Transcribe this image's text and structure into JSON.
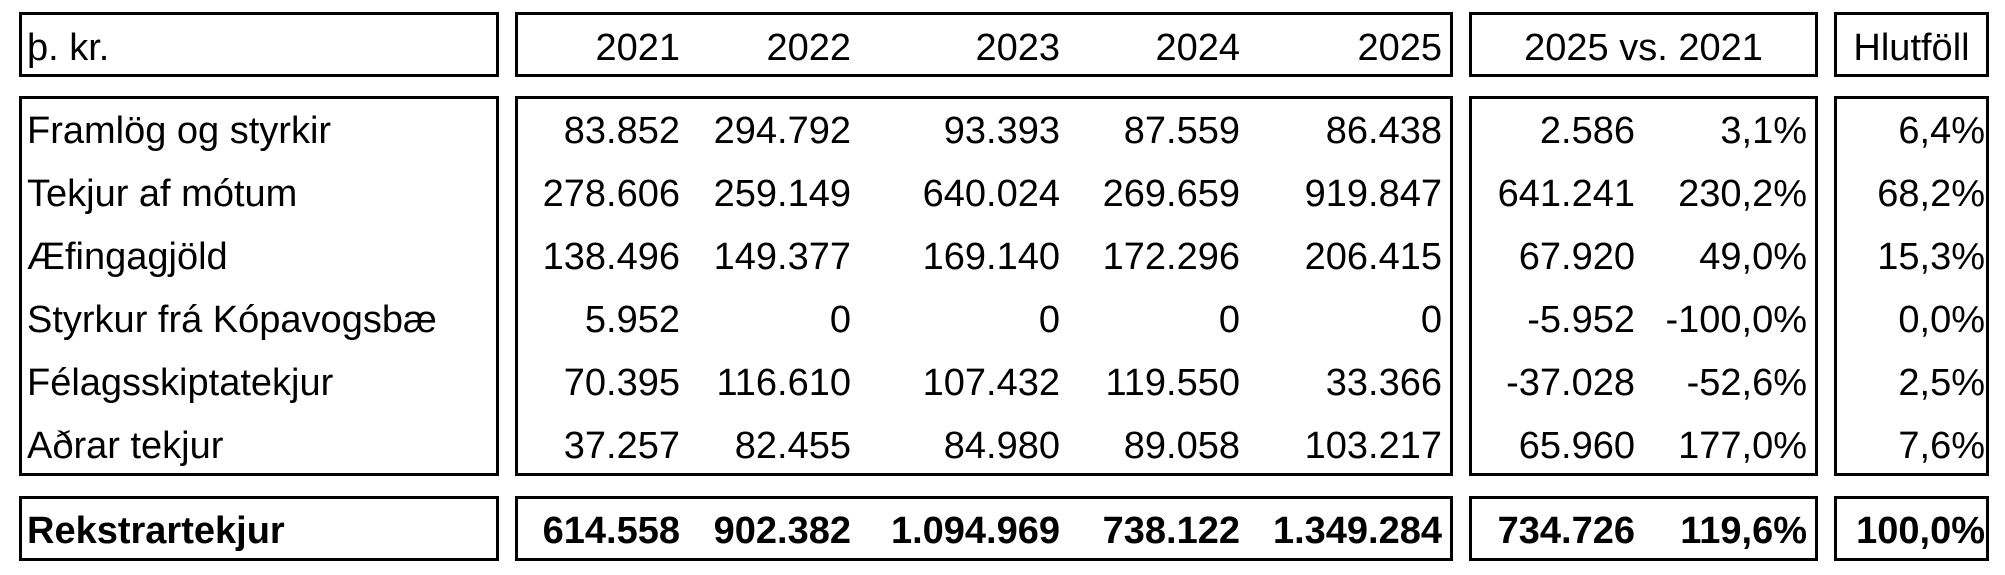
{
  "header": {
    "unit": "þ. kr.",
    "years": [
      "2021",
      "2022",
      "2023",
      "2024",
      "2025"
    ],
    "comparison": "2025 vs. 2021",
    "share": "Hlutföll"
  },
  "rows": [
    {
      "label": "Framlög og styrkir",
      "values": [
        "83.852",
        "294.792",
        "93.393",
        "87.559",
        "86.438"
      ],
      "diff": "2.586",
      "pct": "3,1%",
      "share": "6,4%"
    },
    {
      "label": "Tekjur af mótum",
      "values": [
        "278.606",
        "259.149",
        "640.024",
        "269.659",
        "919.847"
      ],
      "diff": "641.241",
      "pct": "230,2%",
      "share": "68,2%"
    },
    {
      "label": "Æfingagjöld",
      "values": [
        "138.496",
        "149.377",
        "169.140",
        "172.296",
        "206.415"
      ],
      "diff": "67.920",
      "pct": "49,0%",
      "share": "15,3%"
    },
    {
      "label": "Styrkur frá Kópavogsbæ",
      "values": [
        "5.952",
        "0",
        "0",
        "0",
        "0"
      ],
      "diff": "-5.952",
      "pct": "-100,0%",
      "share": "0,0%"
    },
    {
      "label": "Félagsskiptatekjur",
      "values": [
        "70.395",
        "116.610",
        "107.432",
        "119.550",
        "33.366"
      ],
      "diff": "-37.028",
      "pct": "-52,6%",
      "share": "2,5%"
    },
    {
      "label": "Aðrar tekjur",
      "values": [
        "37.257",
        "82.455",
        "84.980",
        "89.058",
        "103.217"
      ],
      "diff": "65.960",
      "pct": "177,0%",
      "share": "7,6%"
    }
  ],
  "total": {
    "label": "Rekstrartekjur",
    "values": [
      "614.558",
      "902.382",
      "1.094.969",
      "738.122",
      "1.349.284"
    ],
    "diff": "734.726",
    "pct": "119,6%",
    "share": "100,0%"
  }
}
